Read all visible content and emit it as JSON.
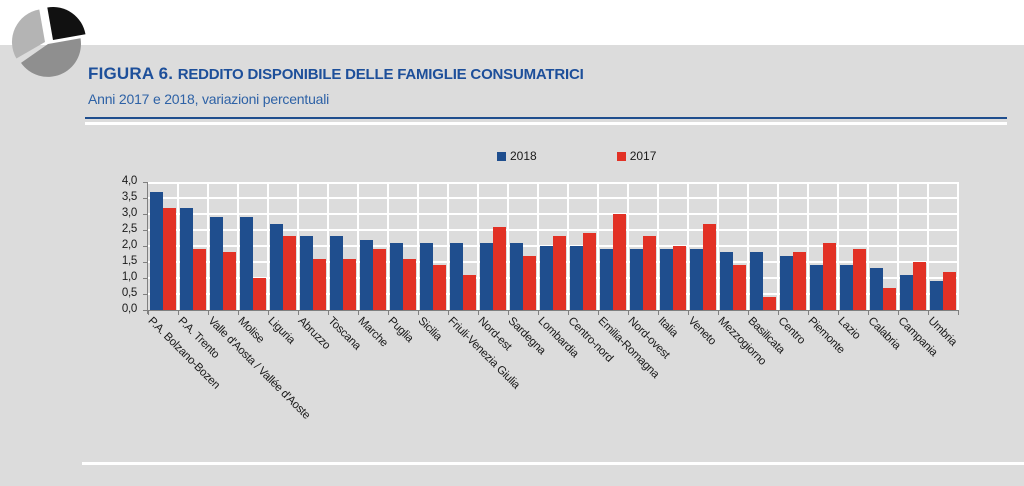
{
  "page": {
    "figure_label": "FIGURA 6.",
    "title": "REDDITO DISPONIBILE DELLE FAMIGLIE CONSUMATRICI",
    "subtitle": "Anni 2017 e 2018, variazioni percentuali"
  },
  "colors": {
    "title_blue": "#1d4f9a",
    "subtitle_blue": "#2e62a6",
    "separator_navy": "#1f4e8e",
    "panel_gray": "#dcdcdc",
    "axis_gray": "#7f7f7f",
    "bar_blue_2018": "#1f4e8e",
    "bar_red_2017": "#e23125",
    "logo_black": "#111111",
    "logo_gray_medium": "#8f8f8f",
    "logo_gray_light": "#b4b4b4"
  },
  "chart_data": {
    "type": "bar",
    "title": "FIGURA 6. REDDITO DISPONIBILE DELLE FAMIGLIE CONSUMATRICI",
    "subtitle": "Anni 2017 e 2018, variazioni percentuali",
    "xlabel": "",
    "ylabel": "",
    "ylim": [
      0,
      4
    ],
    "ytick_step": 0.5,
    "grid": true,
    "legend_position": "top",
    "y_tick_labels": [
      "4,0",
      "3,5",
      "3,0",
      "2,5",
      "2,0",
      "1,5",
      "1,0",
      "0,5",
      "0,0"
    ],
    "categories": [
      "P.A. Bolzano-Bozen",
      "P.A. Trento",
      "Valle d'Aosta / Vallée d'Aoste",
      "Molise",
      "Liguria",
      "Abruzzo",
      "Toscana",
      "Marche",
      "Puglia",
      "Sicilia",
      "Friuli-Venezia Giulia",
      "Nord-est",
      "Sardegna",
      "Lombardia",
      "Centro-nord",
      "Emilia-Romagna",
      "Nord-ovest",
      "Italia",
      "Veneto",
      "Mezzogiorno",
      "Basilicata",
      "Centro",
      "Piemonte",
      "Lazio",
      "Calabria",
      "Campania",
      "Umbria"
    ],
    "series": [
      {
        "name": "2018",
        "color": "#1f4e8e",
        "values": [
          3.7,
          3.2,
          2.9,
          2.9,
          2.7,
          2.3,
          2.3,
          2.2,
          2.1,
          2.1,
          2.1,
          2.1,
          2.1,
          2.0,
          2.0,
          1.9,
          1.9,
          1.9,
          1.9,
          1.8,
          1.8,
          1.7,
          1.4,
          1.4,
          1.3,
          1.1,
          0.9
        ]
      },
      {
        "name": "2017",
        "color": "#e23125",
        "values": [
          3.2,
          1.9,
          1.8,
          1.0,
          2.3,
          1.6,
          1.6,
          1.9,
          1.6,
          1.4,
          1.1,
          2.6,
          1.7,
          2.3,
          2.4,
          3.0,
          2.3,
          2.0,
          2.7,
          1.4,
          0.4,
          1.8,
          2.1,
          1.9,
          0.7,
          1.5,
          1.2
        ]
      }
    ]
  }
}
